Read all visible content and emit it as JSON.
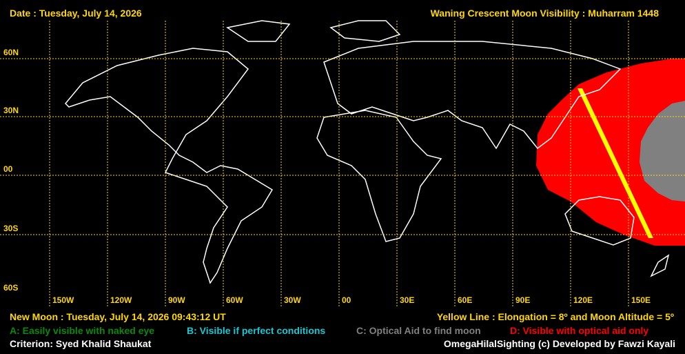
{
  "header": {
    "date": "Date : Tuesday, July 14, 2026",
    "title": "Waning Crescent Moon Visibility : Muharram 1448"
  },
  "map": {
    "lat_labels": [
      "60N",
      "30N",
      "00",
      "30S",
      "60S"
    ],
    "lon_labels": [
      "150W",
      "120W",
      "90W",
      "60W",
      "30W",
      "00",
      "30E",
      "60E",
      "90E",
      "120E",
      "150E"
    ],
    "colors": {
      "grid": "#ffd800",
      "coast": "#ffffff",
      "zone_d": "#ff0000",
      "zone_c": "#808080",
      "yellow_line": "#ffff00"
    }
  },
  "footer": {
    "new_moon": "New Moon : Tuesday, July 14, 2026  09:43:12  UT",
    "yellow_line": "Yellow Line : Elongation = 8º  and Moon Altitude = 5º",
    "legend": [
      {
        "label": "A: Easily visible with naked eye",
        "color": "#0a8a0a"
      },
      {
        "label": "B: Visible if perfect conditions",
        "color": "#19c8d2"
      },
      {
        "label": "C: Optical Aid to find moon",
        "color": "#808080"
      },
      {
        "label": "D: Visible with optical aid only",
        "color": "#ff0000"
      }
    ],
    "criterion": "Criterion: Syed Khalid Shaukat",
    "credit": "OmegaHilalSighting  (c)  Developed by Fawzi Kayali"
  }
}
